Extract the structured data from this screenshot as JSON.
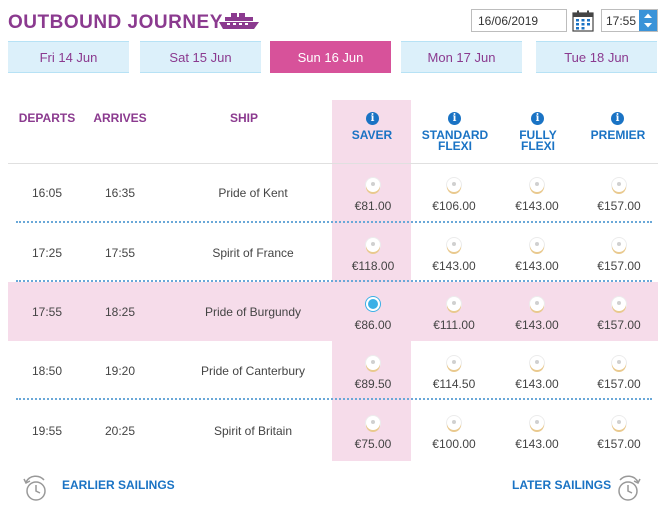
{
  "header": {
    "title": "OUTBOUND JOURNEY",
    "date_value": "16/06/2019",
    "time_value": "17:55"
  },
  "tabs": [
    {
      "label": "Fri 14 Jun",
      "active": false
    },
    {
      "label": "Sat 15 Jun",
      "active": false
    },
    {
      "label": "Sun 16 Jun",
      "active": true
    },
    {
      "label": "Mon 17 Jun",
      "active": false
    },
    {
      "label": "Tue 18 Jun",
      "active": false
    }
  ],
  "columns": {
    "departs": "DEPARTS",
    "arrives": "ARRIVES",
    "ship": "SHIP",
    "saver": "SAVER",
    "standard_flexi_1": "STANDARD",
    "standard_flexi_2": "FLEXI",
    "fully_flexi_1": "FULLY",
    "fully_flexi_2": "FLEXI",
    "premier": "PREMIER",
    "info_glyph": "i"
  },
  "sailings": [
    {
      "departs": "16:05",
      "arrives": "16:35",
      "ship": "Pride of Kent",
      "saver": "€81.00",
      "standard": "€106.00",
      "fully": "€143.00",
      "premier": "€157.00",
      "selected": false
    },
    {
      "departs": "17:25",
      "arrives": "17:55",
      "ship": "Spirit of France",
      "saver": "€118.00",
      "standard": "€143.00",
      "fully": "€143.00",
      "premier": "€157.00",
      "selected": false
    },
    {
      "departs": "17:55",
      "arrives": "18:25",
      "ship": "Pride of Burgundy",
      "saver": "€86.00",
      "standard": "€111.00",
      "fully": "€143.00",
      "premier": "€157.00",
      "selected": true
    },
    {
      "departs": "18:50",
      "arrives": "19:20",
      "ship": "Pride of Canterbury",
      "saver": "€89.50",
      "standard": "€114.50",
      "fully": "€143.00",
      "premier": "€157.00",
      "selected": false
    },
    {
      "departs": "19:55",
      "arrives": "20:25",
      "ship": "Spirit of Britain",
      "saver": "€75.00",
      "standard": "€100.00",
      "fully": "€143.00",
      "premier": "€157.00",
      "selected": false
    }
  ],
  "footer": {
    "earlier": "EARLIER SAILINGS",
    "later": "LATER SAILINGS"
  },
  "icons": {
    "ship": "ferry-icon",
    "calendar": "calendar-icon",
    "time_spinner": "spinner-icon",
    "info": "info-icon",
    "earlier_clock": "clock-back-icon",
    "later_clock": "clock-forward-icon"
  },
  "colors": {
    "brand_purple": "#8b3a8f",
    "active_tab": "#d7529a",
    "tab_bg": "#dcf0fa",
    "fare_blue": "#1a73c4",
    "saver_highlight": "#f6dcea"
  }
}
